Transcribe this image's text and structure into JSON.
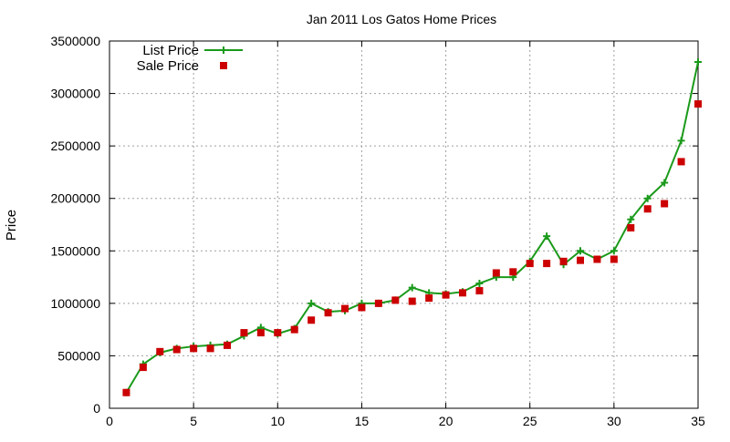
{
  "chart_data": {
    "type": "line",
    "title": "Jan 2011 Los Gatos Home Prices",
    "xlabel": "",
    "ylabel": "Price",
    "xlim": [
      0,
      35
    ],
    "ylim": [
      0,
      3500000
    ],
    "xticks": [
      0,
      5,
      10,
      15,
      20,
      25,
      30,
      35
    ],
    "yticks": [
      0,
      500000,
      1000000,
      1500000,
      2000000,
      2500000,
      3000000,
      3500000
    ],
    "grid": true,
    "legend_position": "top-left",
    "series": [
      {
        "name": "List Price",
        "style": "line-plus",
        "color": "#1a9a1a",
        "x": [
          1,
          2,
          3,
          4,
          5,
          6,
          7,
          8,
          9,
          10,
          11,
          12,
          13,
          14,
          15,
          16,
          17,
          18,
          19,
          20,
          21,
          22,
          23,
          24,
          25,
          26,
          27,
          28,
          29,
          30,
          31,
          32,
          33,
          34,
          35
        ],
        "y": [
          150000,
          420000,
          530000,
          570000,
          590000,
          600000,
          610000,
          690000,
          770000,
          710000,
          760000,
          1000000,
          920000,
          930000,
          1000000,
          1000000,
          1030000,
          1150000,
          1100000,
          1090000,
          1110000,
          1190000,
          1250000,
          1250000,
          1400000,
          1640000,
          1370000,
          1500000,
          1420000,
          1500000,
          1800000,
          2000000,
          2150000,
          2550000,
          3300000
        ]
      },
      {
        "name": "Sale Price",
        "style": "square-markers",
        "color": "#cc0000",
        "x": [
          1,
          2,
          3,
          4,
          5,
          6,
          7,
          8,
          9,
          10,
          11,
          12,
          13,
          14,
          15,
          16,
          17,
          18,
          19,
          20,
          21,
          22,
          23,
          24,
          25,
          26,
          27,
          28,
          29,
          30,
          31,
          32,
          33,
          34,
          35
        ],
        "y": [
          150000,
          390000,
          540000,
          560000,
          570000,
          570000,
          600000,
          720000,
          720000,
          720000,
          750000,
          840000,
          910000,
          950000,
          960000,
          1000000,
          1030000,
          1020000,
          1050000,
          1080000,
          1100000,
          1120000,
          1290000,
          1300000,
          1380000,
          1380000,
          1400000,
          1410000,
          1420000,
          1420000,
          1720000,
          1900000,
          1950000,
          2350000,
          2900000
        ]
      }
    ]
  }
}
